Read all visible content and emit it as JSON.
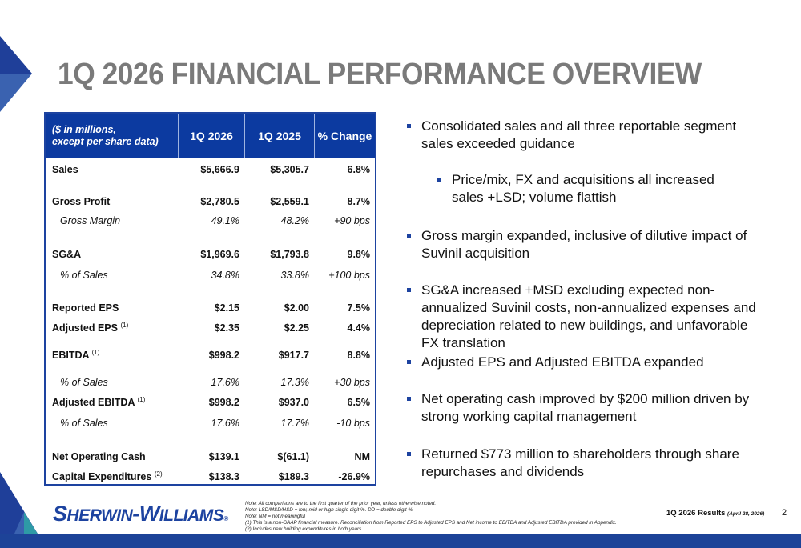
{
  "title": "1Q 2026 FINANCIAL PERFORMANCE OVERVIEW",
  "table": {
    "headers": [
      "($ in millions,\nexcept per share data)",
      "1Q 2026",
      "1Q 2025",
      "% Change"
    ],
    "header_line1": "($ in millions,",
    "header_line2": "except per share data)",
    "rows": [
      {
        "label": "Sales",
        "sup": "",
        "v1": "$5,666.9",
        "v2": "$5,305.7",
        "chg": "6.8%"
      },
      {
        "label": "Gross Profit",
        "sup": "",
        "v1": "$2,780.5",
        "v2": "$2,559.1",
        "chg": "8.7%"
      },
      {
        "label": "Gross Margin",
        "sup": "",
        "v1": "49.1%",
        "v2": "48.2%",
        "chg": "+90 bps"
      },
      {
        "label": "SG&A",
        "sup": "",
        "v1": "$1,969.6",
        "v2": "$1,793.8",
        "chg": "9.8%"
      },
      {
        "label": "% of Sales",
        "sup": "",
        "v1": "34.8%",
        "v2": "33.8%",
        "chg": "+100 bps"
      },
      {
        "label": "Reported EPS",
        "sup": "",
        "v1": "$2.15",
        "v2": "$2.00",
        "chg": "7.5%"
      },
      {
        "label": "Adjusted EPS",
        "sup": "(1)",
        "v1": "$2.35",
        "v2": "$2.25",
        "chg": "4.4%"
      },
      {
        "label": "EBITDA",
        "sup": "(1)",
        "v1": "$998.2",
        "v2": "$917.7",
        "chg": "8.8%"
      },
      {
        "label": "% of Sales",
        "sup": "",
        "v1": "17.6%",
        "v2": "17.3%",
        "chg": "+30 bps"
      },
      {
        "label": "Adjusted EBITDA",
        "sup": "(1)",
        "v1": "$998.2",
        "v2": "$937.0",
        "chg": "6.5%"
      },
      {
        "label": "% of Sales",
        "sup": "",
        "v1": "17.6%",
        "v2": "17.7%",
        "chg": "-10 bps"
      },
      {
        "label": "Net Operating Cash",
        "sup": "",
        "v1": "$139.1",
        "v2": "$(61.1)",
        "chg": "NM"
      },
      {
        "label": "Capital Expenditures",
        "sup": "(2)",
        "v1": "$138.3",
        "v2": "$189.3",
        "chg": "-26.9%"
      }
    ]
  },
  "bullets": [
    "Consolidated sales and all three reportable segment sales exceeded guidance",
    "Price/mix, FX and acquisitions all increased sales +LSD; volume flattish",
    "Gross margin expanded, inclusive of dilutive impact of Suvinil acquisition",
    "SG&A increased +MSD excluding expected non-annualized Suvinil costs, non-annualized expenses and depreciation related to new buildings, and unfavorable FX translation",
    "Adjusted EPS and Adjusted EBITDA expanded",
    "Net operating cash improved by $200 million driven by strong working capital management",
    "Returned $773 million to shareholders through share repurchases and dividends"
  ],
  "logo": "SHERWIN-WILLIAMS",
  "notes": [
    "Note: All comparisons are to the first quarter of the prior year, unless otherwise noted.",
    "Note: LSD/MSD/HSD = low, mid or high single digit %.  DD = double digit %.",
    "Note: NM = not meaningful",
    "(1)   This is a non-GAAP financial measure.  Reconciliation from Reported EPS to Adjusted EPS and Net income to EBITDA and Adjusted EBITDA provided in Appendix.",
    "(2)   Includes new building expenditures in both years."
  ],
  "footer": {
    "label": "1Q 2026 Results",
    "date": "(April 28, 2026)",
    "page": "2"
  },
  "colors": {
    "brand_blue": "#1d43a0",
    "title_gray": "#7a7a7a",
    "teal": "#2e9aa6"
  }
}
